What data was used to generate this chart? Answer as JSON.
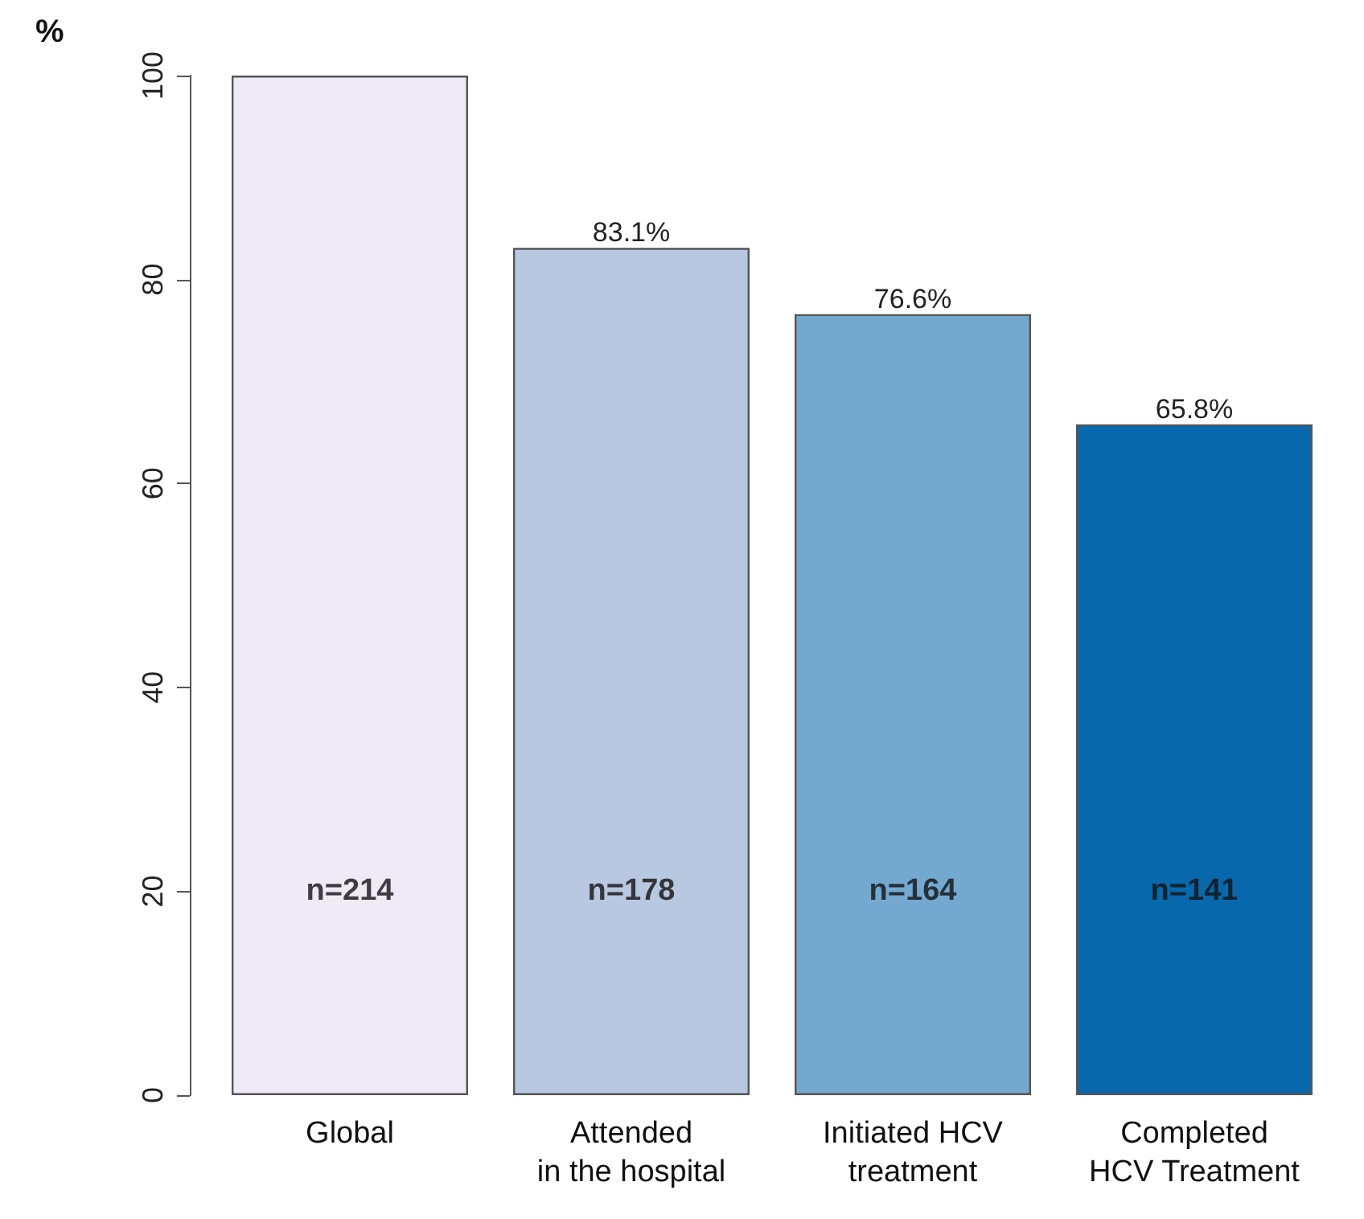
{
  "chart_data": {
    "type": "bar",
    "ylabel": "%",
    "categories": [
      "Global",
      "Attended\nin the hospital",
      "Initiated HCV\ntreatment",
      "Completed\nHCV Treatment"
    ],
    "values": [
      100,
      83.1,
      76.6,
      65.8
    ],
    "value_labels": [
      null,
      "83.1%",
      "76.6%",
      "65.8%"
    ],
    "colors": [
      "#efeaf5",
      "#b9c8e1",
      "#74a9cf",
      "#0868ac"
    ],
    "ylim": [
      0,
      100
    ],
    "yticks": [
      0,
      20,
      40,
      60,
      80,
      100
    ],
    "annotations": [
      "n=214",
      "n=178",
      "n=164",
      "n=141"
    ]
  }
}
